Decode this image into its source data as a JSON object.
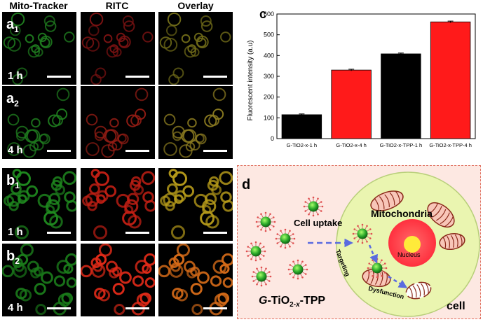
{
  "columns": [
    "Mito-Tracker",
    "RITC",
    "Overlay"
  ],
  "rows": [
    {
      "label": "a",
      "sub": "1",
      "time": "1 h"
    },
    {
      "label": "a",
      "sub": "2",
      "time": "4 h"
    },
    {
      "label": "b",
      "sub": "1",
      "time": "1 h"
    },
    {
      "label": "b",
      "sub": "2",
      "time": "4 h"
    }
  ],
  "panel_c": {
    "label": "c"
  },
  "panel_d": {
    "label": "d"
  },
  "chart_data": {
    "type": "bar",
    "categories": [
      "G-TiO2-x-1 h",
      "G-TiO2-x-4 h",
      "G-TiO2-x-TPP-1 h",
      "G-TiO2-x-TPP-4 h"
    ],
    "values": [
      115,
      330,
      408,
      562
    ],
    "errors": [
      4,
      4,
      4,
      4
    ],
    "colors": [
      "#000000",
      "#ff1a1a",
      "#000000",
      "#ff1a1a"
    ],
    "ylabel": "Fluorescent intensity (a.u)",
    "ylim": [
      0,
      600
    ],
    "yticks": [
      0,
      100,
      200,
      300,
      400,
      500,
      600
    ]
  },
  "schematic": {
    "cell_uptake": "Cell uptake",
    "mitochondria": "Mitochondria",
    "nucleus": "Nucleus",
    "targeting": "Targeting",
    "dysfunction": "Dysfunction",
    "cell": "cell",
    "particle_prefix": "G",
    "particle_main": "-TiO",
    "particle_sub1": "2-",
    "particle_sub2": "x",
    "particle_suffix": "-TPP"
  },
  "colors": {
    "green": "#3ccb2e",
    "red": "#ff2a1a",
    "cell_fill": "#eaf5b0",
    "box_border": "#e07060"
  }
}
